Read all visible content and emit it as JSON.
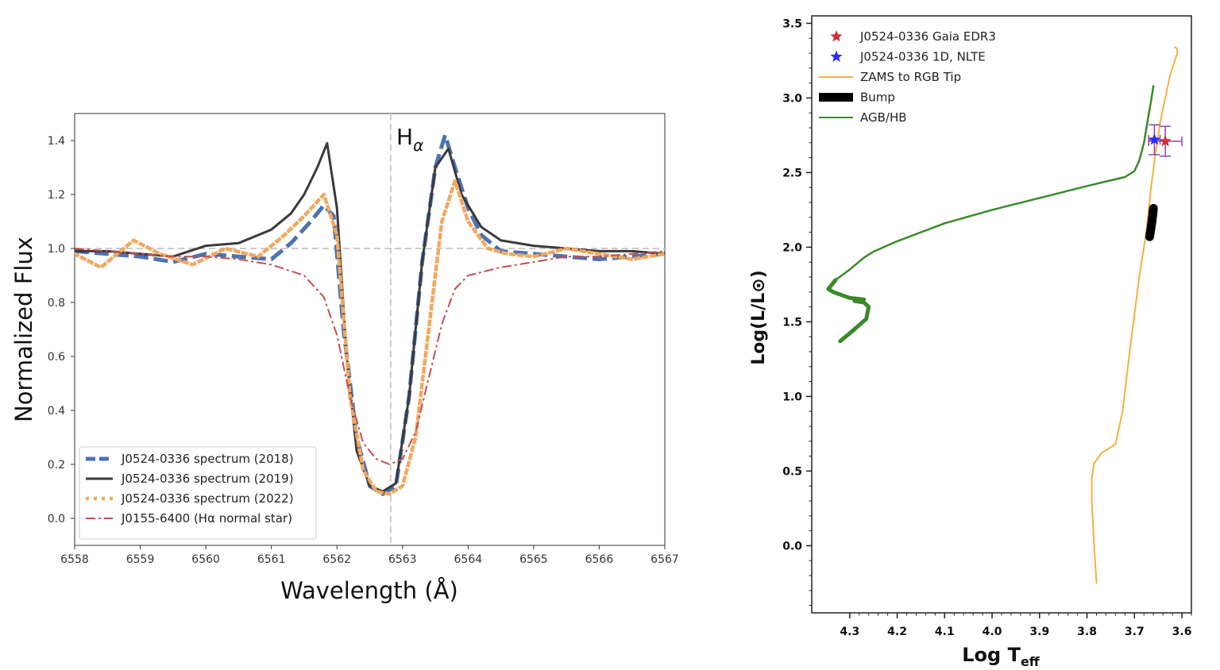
{
  "chart_data": [
    {
      "type": "line",
      "xlabel": "Wavelength (Å)",
      "ylabel": "Normalized Flux",
      "xlim": [
        6558,
        6567
      ],
      "ylim": [
        -0.1,
        1.5
      ],
      "xticks": [
        "6558",
        "6559",
        "6560",
        "6561",
        "6562",
        "6563",
        "6564",
        "6565",
        "6566",
        "6567"
      ],
      "yticks": [
        "0.0",
        "0.2",
        "0.4",
        "0.6",
        "0.8",
        "1.0",
        "1.2",
        "1.4"
      ],
      "annotation": {
        "text": "H",
        "subscript": "α"
      },
      "reference_lines": {
        "x": 6562.82,
        "y": 1.0
      },
      "legend_position": "lower-left",
      "series": [
        {
          "name": "J0524-0336 spectrum (2018)",
          "color": "#4c72b0",
          "style": "dashed",
          "x": [
            6558.0,
            6558.5,
            6559.0,
            6559.5,
            6560.0,
            6560.5,
            6561.0,
            6561.3,
            6561.6,
            6561.8,
            6561.95,
            6562.1,
            6562.3,
            6562.5,
            6562.7,
            6562.9,
            6563.1,
            6563.3,
            6563.5,
            6563.65,
            6563.8,
            6564.0,
            6564.2,
            6564.5,
            6565.0,
            6565.5,
            6566.0,
            6566.5,
            6567.0
          ],
          "y": [
            0.99,
            0.98,
            0.97,
            0.95,
            0.98,
            0.97,
            0.96,
            1.02,
            1.1,
            1.16,
            1.12,
            0.7,
            0.3,
            0.12,
            0.09,
            0.12,
            0.45,
            0.95,
            1.3,
            1.42,
            1.3,
            1.15,
            1.05,
            0.99,
            0.98,
            0.97,
            0.96,
            0.97,
            0.98
          ]
        },
        {
          "name": "J0524-0336 spectrum (2019)",
          "color": "#3a3a3a",
          "style": "solid",
          "x": [
            6558.0,
            6558.5,
            6559.0,
            6559.5,
            6560.0,
            6560.5,
            6561.0,
            6561.3,
            6561.5,
            6561.7,
            6561.85,
            6562.0,
            6562.15,
            6562.3,
            6562.5,
            6562.7,
            6562.9,
            6563.1,
            6563.3,
            6563.5,
            6563.7,
            6563.9,
            6564.2,
            6564.5,
            6565.0,
            6565.5,
            6566.0,
            6566.5,
            6567.0
          ],
          "y": [
            0.99,
            0.99,
            0.98,
            0.97,
            1.01,
            1.02,
            1.07,
            1.13,
            1.2,
            1.3,
            1.39,
            1.15,
            0.6,
            0.25,
            0.12,
            0.1,
            0.13,
            0.45,
            0.95,
            1.3,
            1.37,
            1.2,
            1.08,
            1.03,
            1.01,
            1.0,
            0.99,
            0.99,
            0.98
          ]
        },
        {
          "name": "J0524-0336 spectrum (2022)",
          "color": "#f0a860",
          "style": "dotted",
          "x": [
            6558.0,
            6558.4,
            6558.9,
            6559.3,
            6559.8,
            6560.3,
            6560.8,
            6561.2,
            6561.5,
            6561.8,
            6562.0,
            6562.2,
            6562.4,
            6562.6,
            6562.8,
            6563.0,
            6563.2,
            6563.4,
            6563.6,
            6563.8,
            6564.0,
            6564.3,
            6564.6,
            6565.0,
            6565.5,
            6566.0,
            6566.5,
            6567.0
          ],
          "y": [
            0.98,
            0.93,
            1.03,
            0.98,
            0.94,
            1.0,
            0.97,
            1.05,
            1.12,
            1.2,
            1.05,
            0.45,
            0.18,
            0.1,
            0.09,
            0.12,
            0.3,
            0.7,
            1.1,
            1.25,
            1.1,
            1.0,
            0.98,
            0.97,
            1.0,
            0.98,
            0.96,
            0.98
          ]
        },
        {
          "name": "J0155-6400 (Hα normal star)",
          "color": "#c44e52",
          "style": "dashdot",
          "x": [
            6558.0,
            6558.5,
            6559.0,
            6559.5,
            6560.0,
            6560.5,
            6561.0,
            6561.5,
            6561.8,
            6562.0,
            6562.2,
            6562.4,
            6562.6,
            6562.8,
            6563.0,
            6563.2,
            6563.4,
            6563.6,
            6563.8,
            6564.0,
            6564.5,
            6565.0,
            6565.5,
            6566.0,
            6566.5,
            6567.0
          ],
          "y": [
            1.0,
            0.99,
            0.98,
            0.97,
            0.97,
            0.96,
            0.94,
            0.9,
            0.82,
            0.68,
            0.45,
            0.28,
            0.22,
            0.2,
            0.22,
            0.32,
            0.52,
            0.72,
            0.85,
            0.9,
            0.93,
            0.95,
            0.97,
            0.97,
            0.98,
            0.99
          ]
        }
      ]
    },
    {
      "type": "line",
      "xlabel": "Log T",
      "xlabel_subscript": "eff",
      "ylabel": "Log(L/L⊙)",
      "xlim": [
        4.38,
        3.58
      ],
      "ylim": [
        -0.45,
        3.55
      ],
      "xticks": [
        "4.3",
        "4.2",
        "4.1",
        "4.0",
        "3.9",
        "3.8",
        "3.7",
        "3.6"
      ],
      "yticks": [
        "0.0",
        "0.5",
        "1.0",
        "1.5",
        "2.0",
        "2.5",
        "3.0",
        "3.5"
      ],
      "legend_position": "top-left",
      "series": [
        {
          "name": "J0524-0336 Gaia EDR3",
          "color": "#d03030",
          "marker": "star",
          "points": [
            {
              "x": 3.635,
              "y": 2.71,
              "xerr": 0.035,
              "yerr": 0.1
            }
          ]
        },
        {
          "name": "J0524-0336 1D, NLTE",
          "color": "#2a2aff",
          "marker": "star",
          "points": [
            {
              "x": 3.658,
              "y": 2.72,
              "xerr": 0.012,
              "yerr": 0.1
            }
          ]
        },
        {
          "name": "ZAMS to RGB Tip",
          "color": "#f5b041",
          "x": [
            3.78,
            3.785,
            3.79,
            3.79,
            3.785,
            3.77,
            3.74,
            3.725,
            3.71,
            3.69,
            3.675,
            3.665,
            3.655,
            3.645,
            3.635,
            3.625,
            3.615,
            3.61,
            3.61,
            3.615
          ],
          "y": [
            -0.25,
            0.0,
            0.3,
            0.45,
            0.55,
            0.62,
            0.68,
            0.9,
            1.3,
            1.8,
            2.1,
            2.4,
            2.65,
            2.85,
            3.0,
            3.15,
            3.25,
            3.3,
            3.33,
            3.34
          ]
        },
        {
          "name": "Bump",
          "color": "#000000",
          "x": [
            3.668,
            3.665,
            3.662,
            3.66
          ],
          "y": [
            2.07,
            2.13,
            2.2,
            2.26
          ]
        },
        {
          "name": "AGB/HB",
          "color": "#3a8a2a",
          "x": [
            4.32,
            4.29,
            4.265,
            4.26,
            4.27,
            4.29,
            4.27,
            4.3,
            4.335,
            4.345,
            4.33,
            4.3,
            4.27,
            4.25,
            4.2,
            4.1,
            4.0,
            3.9,
            3.8,
            3.72,
            3.7,
            3.69,
            3.68,
            3.672,
            3.665,
            3.66
          ],
          "y": [
            1.37,
            1.45,
            1.52,
            1.6,
            1.63,
            1.64,
            1.65,
            1.66,
            1.7,
            1.72,
            1.78,
            1.85,
            1.93,
            1.97,
            2.04,
            2.16,
            2.25,
            2.33,
            2.41,
            2.47,
            2.51,
            2.58,
            2.7,
            2.85,
            2.98,
            3.08
          ]
        }
      ]
    }
  ]
}
